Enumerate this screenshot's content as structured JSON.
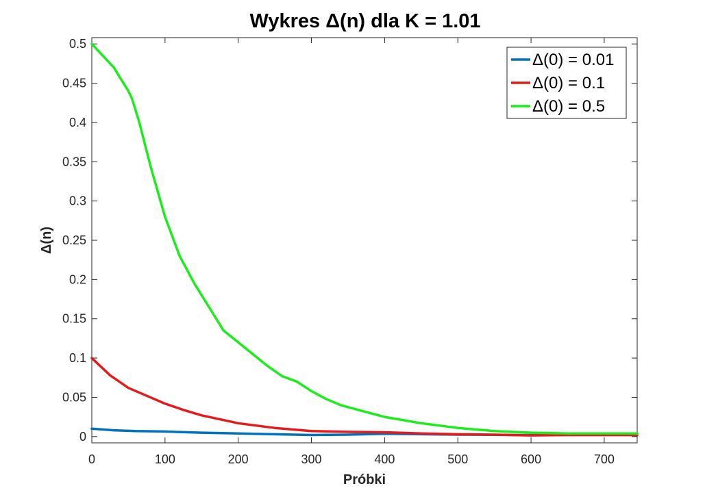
{
  "chart_data": {
    "type": "line",
    "title": "Wykres Δ(n) dla K = 1.01",
    "xlabel": "Próbki",
    "ylabel": "Δ(n)",
    "xlim": [
      0,
      745
    ],
    "ylim": [
      -0.008,
      0.508
    ],
    "xticks": [
      0,
      100,
      200,
      300,
      400,
      500,
      600,
      700
    ],
    "xtick_labels": [
      "0",
      "100",
      "200",
      "300",
      "400",
      "500",
      "600",
      "700"
    ],
    "yticks": [
      0,
      0.05,
      0.1,
      0.15,
      0.2,
      0.25,
      0.3,
      0.35,
      0.4,
      0.45,
      0.5
    ],
    "ytick_labels": [
      "0",
      "0.05",
      "0.1",
      "0.15",
      "0.2",
      "0.25",
      "0.3",
      "0.35",
      "0.4",
      "0.45",
      "0.5"
    ],
    "grid": false,
    "legend_position": "top-right",
    "series": [
      {
        "name": "Δ(0) = 0.01",
        "color": "#0072bd",
        "x": [
          0,
          30,
          60,
          100,
          150,
          200,
          250,
          300,
          350,
          400,
          450,
          500,
          550,
          600,
          650,
          700,
          745
        ],
        "y": [
          0.01,
          0.008,
          0.007,
          0.0065,
          0.005,
          0.004,
          0.003,
          0.002,
          0.0025,
          0.0035,
          0.003,
          0.0025,
          0.0022,
          0.002,
          0.002,
          0.002,
          0.002
        ]
      },
      {
        "name": "Δ(0) = 0.1",
        "color": "#e61a1a",
        "x": [
          0,
          25,
          50,
          75,
          100,
          125,
          150,
          175,
          200,
          250,
          300,
          350,
          400,
          450,
          500,
          550,
          600,
          650,
          700,
          745
        ],
        "y": [
          0.1,
          0.078,
          0.062,
          0.052,
          0.042,
          0.034,
          0.027,
          0.022,
          0.017,
          0.011,
          0.007,
          0.006,
          0.0055,
          0.004,
          0.003,
          0.0025,
          0.0015,
          0.002,
          0.002,
          0.002
        ]
      },
      {
        "name": "Δ(0) = 0.5",
        "color": "#1aee1a",
        "x": [
          0,
          10,
          20,
          30,
          40,
          50,
          55,
          65,
          80,
          100,
          120,
          140,
          160,
          180,
          200,
          220,
          240,
          260,
          280,
          300,
          320,
          340,
          360,
          380,
          400,
          450,
          500,
          550,
          600,
          650,
          700,
          745
        ],
        "y": [
          0.5,
          0.49,
          0.48,
          0.47,
          0.455,
          0.44,
          0.43,
          0.4,
          0.345,
          0.28,
          0.23,
          0.195,
          0.165,
          0.135,
          0.12,
          0.105,
          0.09,
          0.077,
          0.07,
          0.058,
          0.048,
          0.04,
          0.035,
          0.03,
          0.025,
          0.017,
          0.011,
          0.007,
          0.005,
          0.004,
          0.004,
          0.004
        ]
      }
    ]
  }
}
